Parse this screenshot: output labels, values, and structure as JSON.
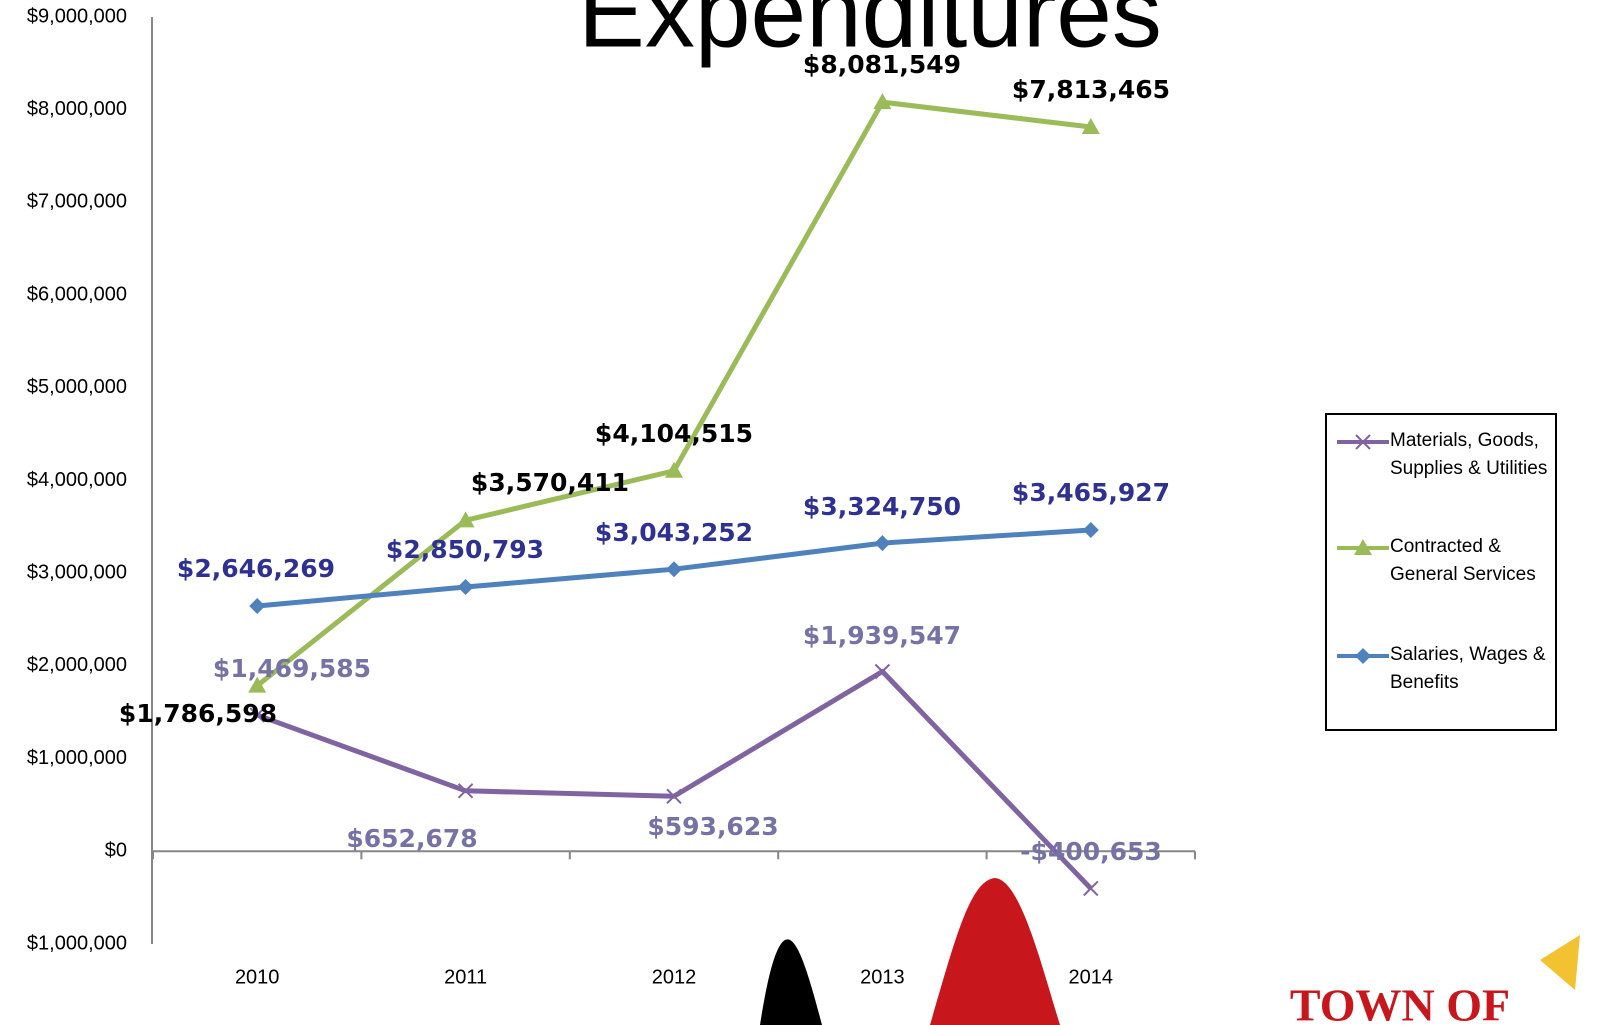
{
  "chart_data": {
    "type": "line",
    "title": "Expenditures",
    "categories": [
      "2010",
      "2011",
      "2012",
      "2013",
      "2014"
    ],
    "series": [
      {
        "name": "Materials, Goods, Supplies & Utilities",
        "color": "#8064a2",
        "marker": "x",
        "label_color": "#7672a6",
        "values": [
          1469585,
          652678,
          593623,
          1939547,
          -400653
        ],
        "value_labels": [
          "$1,469,585",
          "$652,678",
          "$593,623",
          "$1,939,547",
          "-$400,653"
        ]
      },
      {
        "name": "Contracted & General Services",
        "color": "#9bbb59",
        "marker": "triangle",
        "label_color": "#000000",
        "values": [
          1786598,
          3570411,
          4104515,
          8081549,
          7813465
        ],
        "value_labels": [
          "$1,786,598",
          "$3,570,411",
          "$4,104,515",
          "$8,081,549",
          "$7,813,465"
        ]
      },
      {
        "name": "Salaries, Wages & Benefits",
        "color": "#4f81bd",
        "marker": "diamond",
        "label_color": "#2e3192",
        "values": [
          2646269,
          2850793,
          3043252,
          3324750,
          3465927
        ],
        "value_labels": [
          "$2,646,269",
          "$2,850,793",
          "$3,043,252",
          "$3,324,750",
          "$3,465,927"
        ]
      }
    ],
    "ylim": [
      -1000000,
      9000000
    ],
    "yticks": [
      {
        "value": -1000000,
        "label": "$1,000,000",
        "color": "#ff0000"
      },
      {
        "value": 0,
        "label": "$0"
      },
      {
        "value": 1000000,
        "label": "$1,000,000"
      },
      {
        "value": 2000000,
        "label": "$2,000,000"
      },
      {
        "value": 3000000,
        "label": "$3,000,000"
      },
      {
        "value": 4000000,
        "label": "$4,000,000"
      },
      {
        "value": 5000000,
        "label": "$5,000,000"
      },
      {
        "value": 6000000,
        "label": "$6,000,000"
      },
      {
        "value": 7000000,
        "label": "$7,000,000"
      },
      {
        "value": 8000000,
        "label": "$8,000,000"
      },
      {
        "value": 9000000,
        "label": "$9,000,000"
      }
    ],
    "grid": false,
    "legend": "right",
    "logo_text": "TOWN OF"
  }
}
